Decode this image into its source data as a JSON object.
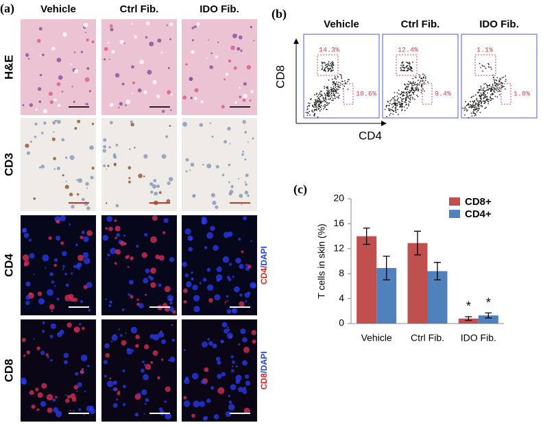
{
  "panel_a": {
    "label": "(a)",
    "columns": [
      "Vehicle",
      "Ctrl Fib.",
      "IDO Fib."
    ],
    "rows": [
      "H&E",
      "CD3",
      "CD4",
      "CD8"
    ],
    "stain_labels": [
      [
        "CD4",
        "/DAPI"
      ],
      [
        "CD8",
        "/DAPI"
      ]
    ]
  },
  "panel_b": {
    "label": "(b)",
    "columns": [
      "Vehicle",
      "Ctrl Fib.",
      "IDO Fib."
    ],
    "y_label": "CD8",
    "x_label": "CD4",
    "gates": [
      [
        "14.3%",
        "10.6%"
      ],
      [
        "12.4%",
        "9.4%"
      ],
      [
        "1.1%",
        "1.0%"
      ]
    ]
  },
  "chart_data": {
    "type": "bar",
    "label": "(c)",
    "y_label": "T cells in skin (%)",
    "categories": [
      "Vehicle",
      "Ctrl Fib.",
      "IDO Fib."
    ],
    "series": [
      {
        "name": "CD8+",
        "color": "#c0504d",
        "values": [
          14,
          12.9,
          0.8
        ],
        "errors": [
          1.3,
          1.9,
          0.3
        ]
      },
      {
        "name": "CD4+",
        "color": "#4f81bd",
        "values": [
          8.9,
          8.4,
          1.3
        ],
        "errors": [
          1.9,
          1.4,
          0.4
        ]
      }
    ],
    "ylim": [
      0,
      20
    ],
    "yticks": [
      0,
      4,
      8,
      12,
      16,
      20
    ],
    "annotations": [
      "*",
      "*"
    ]
  }
}
